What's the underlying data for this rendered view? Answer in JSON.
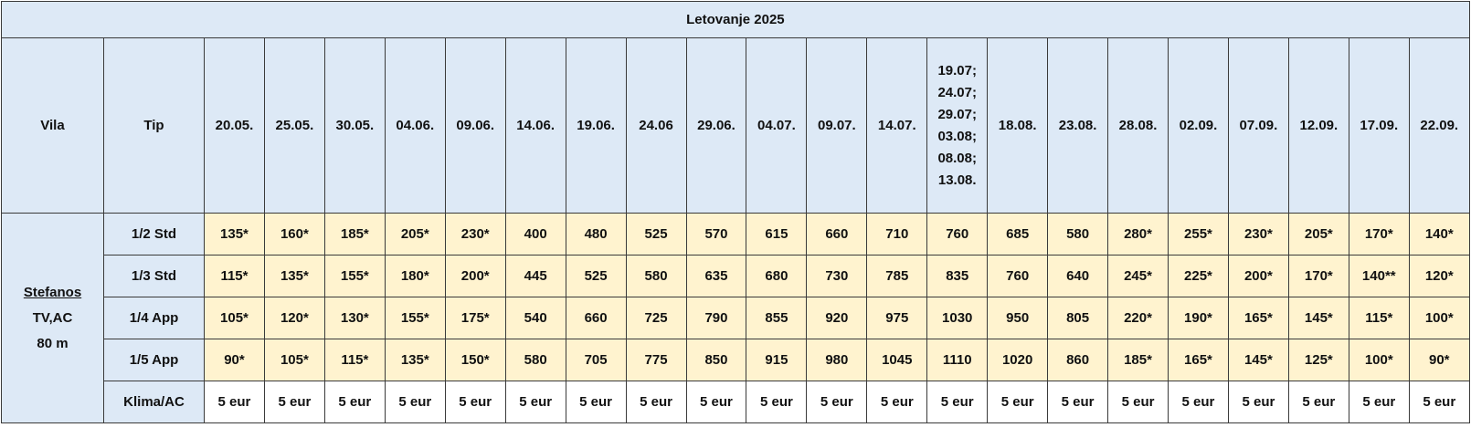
{
  "title": "Letovanje 2025",
  "header": {
    "vila": "Vila",
    "tip": "Tip",
    "dates": [
      "20.05.",
      "25.05.",
      "30.05.",
      "04.06.",
      "09.06.",
      "14.06.",
      "19.06.",
      "24.06",
      "29.06.",
      "04.07.",
      "09.07.",
      "14.07.",
      "19.07; 24.07; 29.07; 03.08; 08.08; 13.08.",
      "18.08.",
      "23.08.",
      "28.08.",
      "02.09.",
      "07.09.",
      "12.09.",
      "17.09.",
      "22.09."
    ]
  },
  "vila": {
    "name": "Stefanos",
    "lines": [
      "TV,AC",
      "80 m"
    ]
  },
  "rows": [
    {
      "tip": "1/2 Std",
      "values": [
        "135*",
        "160*",
        "185*",
        "205*",
        "230*",
        "400",
        "480",
        "525",
        "570",
        "615",
        "660",
        "710",
        "760",
        "685",
        "580",
        "280*",
        "255*",
        "230*",
        "205*",
        "170*",
        "140*"
      ]
    },
    {
      "tip": "1/3 Std",
      "values": [
        "115*",
        "135*",
        "155*",
        "180*",
        "200*",
        "445",
        "525",
        "580",
        "635",
        "680",
        "730",
        "785",
        "835",
        "760",
        "640",
        "245*",
        "225*",
        "200*",
        "170*",
        "140**",
        "120*"
      ]
    },
    {
      "tip": "1/4 App",
      "values": [
        "105*",
        "120*",
        "130*",
        "155*",
        "175*",
        "540",
        "660",
        "725",
        "790",
        "855",
        "920",
        "975",
        "1030",
        "950",
        "805",
        "220*",
        "190*",
        "165*",
        "145*",
        "115*",
        "100*"
      ]
    },
    {
      "tip": "1/5 App",
      "values": [
        "90*",
        "105*",
        "115*",
        "135*",
        "150*",
        "580",
        "705",
        "775",
        "850",
        "915",
        "980",
        "1045",
        "1110",
        "1020",
        "860",
        "185*",
        "165*",
        "145*",
        "125*",
        "100*",
        "90*"
      ]
    }
  ],
  "extra": {
    "tip": "Klima/AC",
    "values": [
      "5 eur",
      "5 eur",
      "5 eur",
      "5 eur",
      "5 eur",
      "5 eur",
      "5 eur",
      "5 eur",
      "5 eur",
      "5 eur",
      "5 eur",
      "5 eur",
      "5 eur",
      "5 eur",
      "5 eur",
      "5 eur",
      "5 eur",
      "5 eur",
      "5 eur",
      "5 eur",
      "5 eur"
    ]
  }
}
